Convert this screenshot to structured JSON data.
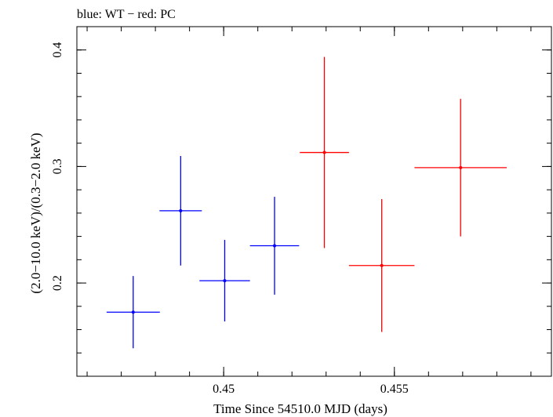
{
  "chart_data": {
    "type": "scatter",
    "title": "blue: WT − red: PC",
    "xlabel": "Time Since 54510.0 MJD (days)",
    "ylabel": "(2.0−10.0 keV)/(0.3−2.0 keV)",
    "xlim": [
      0.4457,
      0.4596
    ],
    "ylim": [
      0.12,
      0.42
    ],
    "x_ticks": [
      {
        "value": 0.45,
        "label": "0.45"
      },
      {
        "value": 0.455,
        "label": "0.455"
      }
    ],
    "y_ticks": [
      {
        "value": 0.2,
        "label": "0.2"
      },
      {
        "value": 0.3,
        "label": "0.3"
      },
      {
        "value": 0.4,
        "label": "0.4"
      }
    ],
    "x_minor_step": 0.001,
    "y_minor_step": 0.02,
    "grid": false,
    "series": [
      {
        "color": "#0000ff",
        "points": [
          {
            "x": 0.44735,
            "xerr": 0.00078,
            "y": 0.175,
            "yerr_low": 0.031,
            "yerr_high": 0.031
          },
          {
            "x": 0.44874,
            "xerr": 0.00062,
            "y": 0.262,
            "yerr_low": 0.047,
            "yerr_high": 0.047
          },
          {
            "x": 0.45003,
            "xerr": 0.00074,
            "y": 0.202,
            "yerr_low": 0.035,
            "yerr_high": 0.035
          },
          {
            "x": 0.45149,
            "xerr": 0.00072,
            "y": 0.232,
            "yerr_low": 0.042,
            "yerr_high": 0.042
          }
        ]
      },
      {
        "color": "#ff0000",
        "points": [
          {
            "x": 0.45295,
            "xerr": 0.00072,
            "y": 0.312,
            "yerr_low": 0.082,
            "yerr_high": 0.082
          },
          {
            "x": 0.45463,
            "xerr": 0.00096,
            "y": 0.215,
            "yerr_low": 0.057,
            "yerr_high": 0.057
          },
          {
            "x": 0.45694,
            "xerr": 0.00135,
            "y": 0.299,
            "yerr_low": 0.059,
            "yerr_high": 0.059
          }
        ]
      }
    ]
  }
}
